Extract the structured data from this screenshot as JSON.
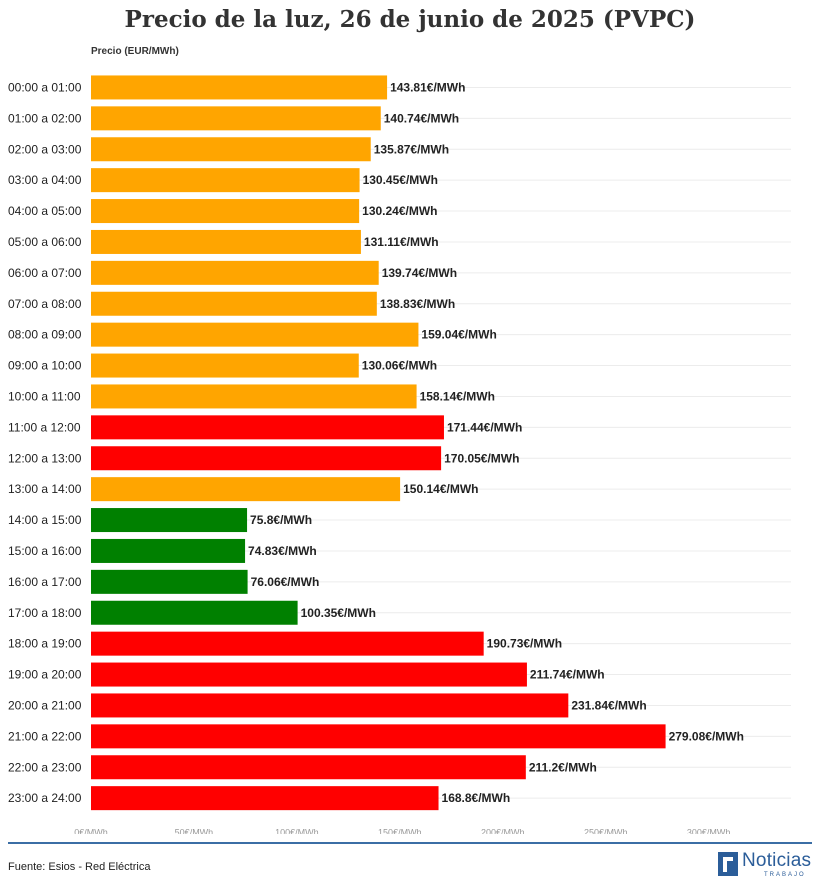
{
  "page": {
    "title": "Precio de la luz, 26 de junio de 2025 (PVPC)",
    "source": "Fuente: Esios - Red Eléctrica",
    "logo_word": "Noticias",
    "logo_sub": "TRABAJO"
  },
  "chart_data": {
    "type": "bar",
    "orientation": "horizontal",
    "title": "Precio de la luz, 26 de junio de 2025 (PVPC)",
    "ylabel": "Precio (EUR/MWh)",
    "xlim": [
      0,
      300
    ],
    "grid": true,
    "value_suffix": "€/MWh",
    "x_ticks": [
      0,
      50,
      100,
      150,
      200,
      250,
      300
    ],
    "x_tick_labels": [
      "0€/MWh",
      "50€/MWh",
      "100€/MWh",
      "150€/MWh",
      "200€/MWh",
      "250€/MWh",
      "300€/MWh"
    ],
    "colors": {
      "high": "#ff0000",
      "mid": "#ffa500",
      "low": "#008000"
    },
    "categories": [
      "00:00 a 01:00",
      "01:00 a 02:00",
      "02:00 a 03:00",
      "03:00 a 04:00",
      "04:00 a 05:00",
      "05:00 a 06:00",
      "06:00 a 07:00",
      "07:00 a 08:00",
      "08:00 a 09:00",
      "09:00 a 10:00",
      "10:00 a 11:00",
      "11:00 a 12:00",
      "12:00 a 13:00",
      "13:00 a 14:00",
      "14:00 a 15:00",
      "15:00 a 16:00",
      "16:00 a 17:00",
      "17:00 a 18:00",
      "18:00 a 19:00",
      "19:00 a 20:00",
      "20:00 a 21:00",
      "21:00 a 22:00",
      "22:00 a 23:00",
      "23:00 a 24:00"
    ],
    "values": [
      143.81,
      140.74,
      135.87,
      130.45,
      130.24,
      131.11,
      139.74,
      138.83,
      159.04,
      130.06,
      158.14,
      171.44,
      170.05,
      150.14,
      75.8,
      74.83,
      76.06,
      100.35,
      190.73,
      211.74,
      231.84,
      279.08,
      211.2,
      168.8
    ],
    "value_labels": [
      "143.81€/MWh",
      "140.74€/MWh",
      "135.87€/MWh",
      "130.45€/MWh",
      "130.24€/MWh",
      "131.11€/MWh",
      "139.74€/MWh",
      "138.83€/MWh",
      "159.04€/MWh",
      "130.06€/MWh",
      "158.14€/MWh",
      "171.44€/MWh",
      "170.05€/MWh",
      "150.14€/MWh",
      "75.8€/MWh",
      "74.83€/MWh",
      "76.06€/MWh",
      "100.35€/MWh",
      "190.73€/MWh",
      "211.74€/MWh",
      "231.84€/MWh",
      "279.08€/MWh",
      "211.2€/MWh",
      "168.8€/MWh"
    ],
    "bar_levels": [
      "mid",
      "mid",
      "mid",
      "mid",
      "mid",
      "mid",
      "mid",
      "mid",
      "mid",
      "mid",
      "mid",
      "high",
      "high",
      "mid",
      "low",
      "low",
      "low",
      "low",
      "high",
      "high",
      "high",
      "high",
      "high",
      "high"
    ]
  }
}
